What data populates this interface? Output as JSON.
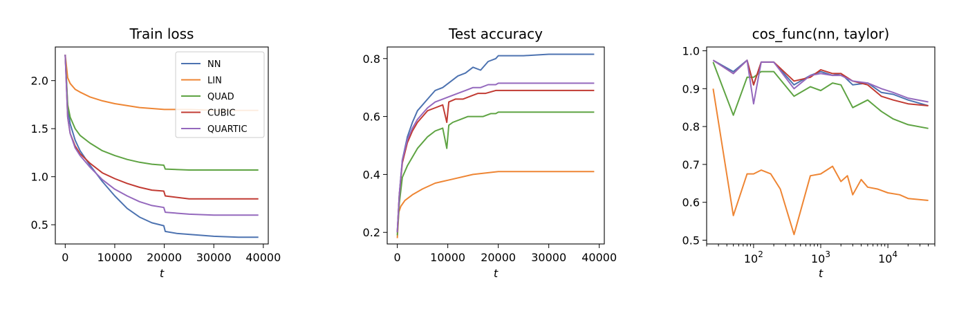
{
  "colors": {
    "NN": "#4c72b0",
    "LIN": "#ee8533",
    "QUAD": "#5ea342",
    "CUBIC": "#c13a32",
    "QUARTIC": "#9468bd"
  },
  "chart_data": [
    {
      "type": "line",
      "title": "Train loss",
      "xlabel": "t",
      "ylabel": "",
      "xlim": [
        -2000,
        41000
      ],
      "ylim": [
        0.3,
        2.35
      ],
      "x_scale": "linear",
      "xticks": [
        0,
        10000,
        20000,
        30000,
        40000
      ],
      "xtick_labels": [
        "0",
        "10000",
        "20000",
        "30000",
        "40000"
      ],
      "yticks": [
        0.5,
        1.0,
        1.5,
        2.0
      ],
      "ytick_labels": [
        "0.5",
        "1.0",
        "1.5",
        "2.0"
      ],
      "grid": false,
      "legend": {
        "position": "top-right",
        "entries": [
          "NN",
          "LIN",
          "QUAD",
          "CUBIC",
          "QUARTIC"
        ]
      },
      "series": [
        {
          "name": "NN",
          "x": [
            0,
            500,
            1000,
            2000,
            3000,
            5000,
            7500,
            10000,
            12500,
            15000,
            17500,
            19900,
            20200,
            22500,
            25000,
            30000,
            35000,
            39000
          ],
          "y": [
            2.27,
            1.72,
            1.55,
            1.38,
            1.27,
            1.12,
            0.95,
            0.8,
            0.67,
            0.58,
            0.52,
            0.49,
            0.43,
            0.41,
            0.4,
            0.38,
            0.37,
            0.37
          ]
        },
        {
          "name": "LIN",
          "x": [
            0,
            500,
            1000,
            2000,
            3000,
            5000,
            7500,
            10000,
            15000,
            20000,
            25000,
            30000,
            35000,
            39000
          ],
          "y": [
            2.27,
            2.03,
            1.97,
            1.91,
            1.88,
            1.83,
            1.79,
            1.76,
            1.72,
            1.7,
            1.7,
            1.69,
            1.69,
            1.69
          ]
        },
        {
          "name": "QUAD",
          "x": [
            0,
            500,
            1000,
            2000,
            3000,
            5000,
            7500,
            10000,
            12500,
            15000,
            17500,
            19900,
            20200,
            25000,
            30000,
            35000,
            39000
          ],
          "y": [
            2.27,
            1.75,
            1.62,
            1.5,
            1.43,
            1.35,
            1.27,
            1.22,
            1.18,
            1.15,
            1.13,
            1.12,
            1.08,
            1.07,
            1.07,
            1.07,
            1.07
          ]
        },
        {
          "name": "CUBIC",
          "x": [
            0,
            500,
            1000,
            2000,
            3000,
            5000,
            7500,
            10000,
            12500,
            15000,
            17500,
            19900,
            20200,
            25000,
            30000,
            35000,
            39000
          ],
          "y": [
            2.27,
            1.62,
            1.45,
            1.32,
            1.24,
            1.14,
            1.04,
            0.98,
            0.93,
            0.89,
            0.86,
            0.85,
            0.8,
            0.77,
            0.77,
            0.77,
            0.77
          ]
        },
        {
          "name": "QUARTIC",
          "x": [
            0,
            500,
            1000,
            2000,
            3000,
            5000,
            7500,
            10000,
            12500,
            15000,
            17500,
            19900,
            20200,
            25000,
            30000,
            35000,
            39000
          ],
          "y": [
            2.27,
            1.62,
            1.45,
            1.3,
            1.22,
            1.1,
            0.97,
            0.87,
            0.8,
            0.74,
            0.7,
            0.68,
            0.63,
            0.61,
            0.6,
            0.6,
            0.6
          ]
        }
      ]
    },
    {
      "type": "line",
      "title": "Test accuracy",
      "xlabel": "t",
      "ylabel": "",
      "xlim": [
        -2000,
        41000
      ],
      "ylim": [
        0.16,
        0.84
      ],
      "x_scale": "linear",
      "xticks": [
        0,
        10000,
        20000,
        30000,
        40000
      ],
      "xtick_labels": [
        "0",
        "10000",
        "20000",
        "30000",
        "40000"
      ],
      "yticks": [
        0.2,
        0.4,
        0.6,
        0.8
      ],
      "ytick_labels": [
        "0.2",
        "0.4",
        "0.6",
        "0.8"
      ],
      "grid": false,
      "series": [
        {
          "name": "NN",
          "x": [
            0,
            400,
            1000,
            2000,
            3000,
            4000,
            5000,
            6000,
            7500,
            9000,
            10500,
            12000,
            13500,
            15000,
            16500,
            18000,
            19500,
            20000,
            25000,
            30000,
            35000,
            39000
          ],
          "y": [
            0.2,
            0.33,
            0.45,
            0.53,
            0.58,
            0.62,
            0.64,
            0.66,
            0.69,
            0.7,
            0.72,
            0.74,
            0.75,
            0.77,
            0.76,
            0.79,
            0.8,
            0.81,
            0.81,
            0.815,
            0.815,
            0.815
          ]
        },
        {
          "name": "LIN",
          "x": [
            0,
            300,
            700,
            1500,
            3000,
            5000,
            7500,
            10000,
            15000,
            20000,
            25000,
            30000,
            35000,
            39000
          ],
          "y": [
            0.18,
            0.27,
            0.29,
            0.31,
            0.33,
            0.35,
            0.37,
            0.38,
            0.4,
            0.41,
            0.41,
            0.41,
            0.41,
            0.41
          ]
        },
        {
          "name": "QUAD",
          "x": [
            0,
            400,
            1000,
            2000,
            3000,
            4000,
            5000,
            6000,
            7500,
            9000,
            9800,
            10200,
            11000,
            12500,
            14000,
            15500,
            17000,
            18500,
            19500,
            20000,
            25000,
            30000,
            35000,
            39000
          ],
          "y": [
            0.19,
            0.3,
            0.39,
            0.43,
            0.46,
            0.49,
            0.51,
            0.53,
            0.55,
            0.56,
            0.49,
            0.57,
            0.58,
            0.59,
            0.6,
            0.6,
            0.6,
            0.61,
            0.61,
            0.615,
            0.615,
            0.615,
            0.615,
            0.615
          ]
        },
        {
          "name": "CUBIC",
          "x": [
            0,
            400,
            1000,
            2000,
            3000,
            4000,
            5000,
            6000,
            7500,
            9000,
            9800,
            10200,
            11500,
            13000,
            14500,
            16000,
            17500,
            19500,
            20000,
            25000,
            30000,
            35000,
            39000
          ],
          "y": [
            0.2,
            0.33,
            0.44,
            0.51,
            0.55,
            0.58,
            0.6,
            0.62,
            0.63,
            0.64,
            0.58,
            0.65,
            0.66,
            0.66,
            0.67,
            0.68,
            0.68,
            0.69,
            0.69,
            0.69,
            0.69,
            0.69,
            0.69
          ]
        },
        {
          "name": "QUARTIC",
          "x": [
            0,
            400,
            1000,
            2000,
            3000,
            4000,
            5000,
            6000,
            7500,
            9000,
            10500,
            12000,
            13500,
            15000,
            16500,
            18000,
            19500,
            20000,
            25000,
            30000,
            35000,
            39000
          ],
          "y": [
            0.2,
            0.33,
            0.45,
            0.52,
            0.56,
            0.59,
            0.61,
            0.63,
            0.65,
            0.66,
            0.67,
            0.68,
            0.69,
            0.7,
            0.7,
            0.71,
            0.71,
            0.715,
            0.715,
            0.715,
            0.715,
            0.715
          ]
        }
      ]
    },
    {
      "type": "line",
      "title": "cos_func(nn, taylor)",
      "xlabel": "t",
      "ylabel": "",
      "xlim": [
        20,
        50000
      ],
      "ylim": [
        0.49,
        1.01
      ],
      "x_scale": "log",
      "xticks": [
        100,
        1000,
        10000
      ],
      "xtick_labels": [
        {
          "base": "10",
          "exp": "2"
        },
        {
          "base": "10",
          "exp": "3"
        },
        {
          "base": "10",
          "exp": "4"
        }
      ],
      "yticks": [
        0.5,
        0.6,
        0.7,
        0.8,
        0.9,
        1.0
      ],
      "ytick_labels": [
        "0.5",
        "0.6",
        "0.7",
        "0.8",
        "0.9",
        "1.0"
      ],
      "grid": false,
      "series": [
        {
          "name": "NN",
          "x": [
            25,
            50,
            80,
            100,
            130,
            200,
            400,
            700,
            1000,
            1500,
            2000,
            3000,
            5000,
            8000,
            12000,
            20000,
            40000
          ],
          "y": [
            0.975,
            0.945,
            0.975,
            0.91,
            0.97,
            0.97,
            0.91,
            0.935,
            0.945,
            0.935,
            0.94,
            0.91,
            0.915,
            0.89,
            0.885,
            0.87,
            0.855
          ]
        },
        {
          "name": "LIN",
          "x": [
            25,
            50,
            80,
            100,
            130,
            180,
            250,
            400,
            700,
            1000,
            1500,
            2000,
            2500,
            3000,
            4000,
            5000,
            7000,
            10000,
            15000,
            20000,
            40000
          ],
          "y": [
            0.9,
            0.565,
            0.675,
            0.675,
            0.685,
            0.675,
            0.635,
            0.515,
            0.67,
            0.675,
            0.695,
            0.655,
            0.67,
            0.62,
            0.66,
            0.64,
            0.635,
            0.625,
            0.62,
            0.61,
            0.605
          ]
        },
        {
          "name": "QUAD",
          "x": [
            25,
            50,
            80,
            100,
            130,
            200,
            400,
            700,
            1000,
            1500,
            2000,
            3000,
            5000,
            8000,
            12000,
            20000,
            40000
          ],
          "y": [
            0.97,
            0.83,
            0.93,
            0.93,
            0.945,
            0.945,
            0.88,
            0.905,
            0.895,
            0.915,
            0.91,
            0.85,
            0.87,
            0.84,
            0.82,
            0.805,
            0.795
          ]
        },
        {
          "name": "CUBIC",
          "x": [
            25,
            50,
            80,
            100,
            130,
            200,
            400,
            700,
            1000,
            1500,
            2000,
            3000,
            5000,
            8000,
            12000,
            20000,
            40000
          ],
          "y": [
            0.975,
            0.94,
            0.975,
            0.91,
            0.97,
            0.97,
            0.92,
            0.93,
            0.95,
            0.94,
            0.94,
            0.92,
            0.91,
            0.88,
            0.87,
            0.86,
            0.855
          ]
        },
        {
          "name": "QUARTIC",
          "x": [
            25,
            50,
            80,
            100,
            130,
            200,
            400,
            700,
            1000,
            1500,
            2000,
            3000,
            5000,
            8000,
            12000,
            20000,
            40000
          ],
          "y": [
            0.975,
            0.94,
            0.975,
            0.86,
            0.97,
            0.97,
            0.9,
            0.935,
            0.94,
            0.935,
            0.935,
            0.92,
            0.915,
            0.9,
            0.89,
            0.875,
            0.865
          ]
        }
      ]
    }
  ]
}
